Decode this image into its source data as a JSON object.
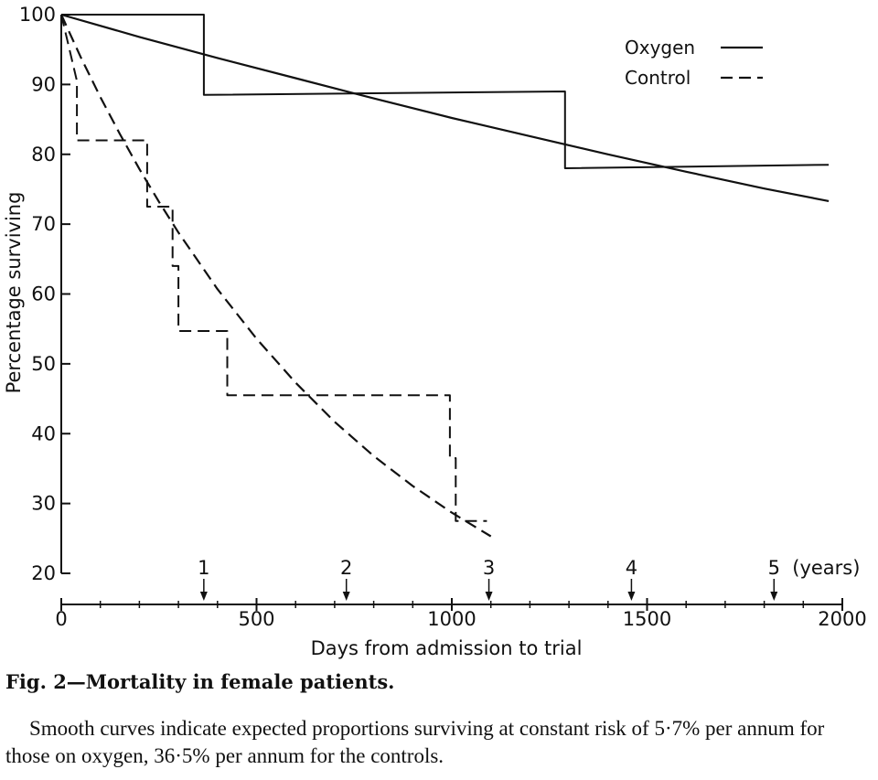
{
  "chart_data": {
    "type": "line",
    "xlabel": "Days from admission to trial",
    "ylabel": "Percentage surviving",
    "xlim": [
      0,
      2000
    ],
    "ylim": [
      20,
      100
    ],
    "x_ticks": [
      0,
      500,
      1000,
      1500,
      2000
    ],
    "y_ticks": [
      20,
      30,
      40,
      50,
      60,
      70,
      80,
      90,
      100
    ],
    "year_markers": [
      {
        "label": "1",
        "day": 365
      },
      {
        "label": "2",
        "day": 730
      },
      {
        "label": "3",
        "day": 1095
      },
      {
        "label": "4",
        "day": 1460
      },
      {
        "label": "5",
        "day": 1825
      }
    ],
    "year_unit_label": "(years)",
    "legend_position": "top-right",
    "legend": [
      {
        "name": "Oxygen",
        "style": "solid"
      },
      {
        "name": "Control",
        "style": "dashed"
      }
    ],
    "series": [
      {
        "name": "Oxygen",
        "kind": "step",
        "style": "solid",
        "x": [
          0,
          365,
          365,
          1290,
          1290,
          1965
        ],
        "y": [
          100,
          100,
          88.5,
          89,
          78,
          78.5
        ]
      },
      {
        "name": "Oxygen",
        "kind": "smooth",
        "style": "solid",
        "x": [
          0,
          200,
          400,
          600,
          800,
          1000,
          1200,
          1400,
          1600,
          1800,
          1965
        ],
        "y": [
          100,
          96.8,
          93.8,
          90.9,
          88.0,
          85.2,
          82.6,
          80.0,
          77.5,
          75.1,
          73.3
        ]
      },
      {
        "name": "Control",
        "kind": "step",
        "style": "dashed",
        "x": [
          0,
          40,
          40,
          220,
          220,
          285,
          285,
          300,
          300,
          425,
          425,
          995,
          995,
          1010,
          1010,
          1090
        ],
        "y": [
          100,
          90.5,
          82,
          82,
          72.5,
          72.5,
          64,
          64,
          54.7,
          54.7,
          45.5,
          45.5,
          36.5,
          36.5,
          27.5,
          27.5
        ]
      },
      {
        "name": "Control",
        "kind": "smooth",
        "style": "dashed",
        "x": [
          0,
          50,
          100,
          150,
          200,
          250,
          300,
          400,
          500,
          600,
          700,
          800,
          900,
          1000,
          1100
        ],
        "y": [
          100,
          93.9,
          88.2,
          82.9,
          77.9,
          73.2,
          68.8,
          60.7,
          53.6,
          47.3,
          41.7,
          36.8,
          32.5,
          28.7,
          25.3
        ]
      }
    ]
  },
  "caption": {
    "title": "Fig. 2—Mortality in female patients.",
    "body": "Smooth curves indicate expected proportions surviving at constant risk of 5·7% per annum for those on oxygen, 36·5% per annum for the controls."
  }
}
